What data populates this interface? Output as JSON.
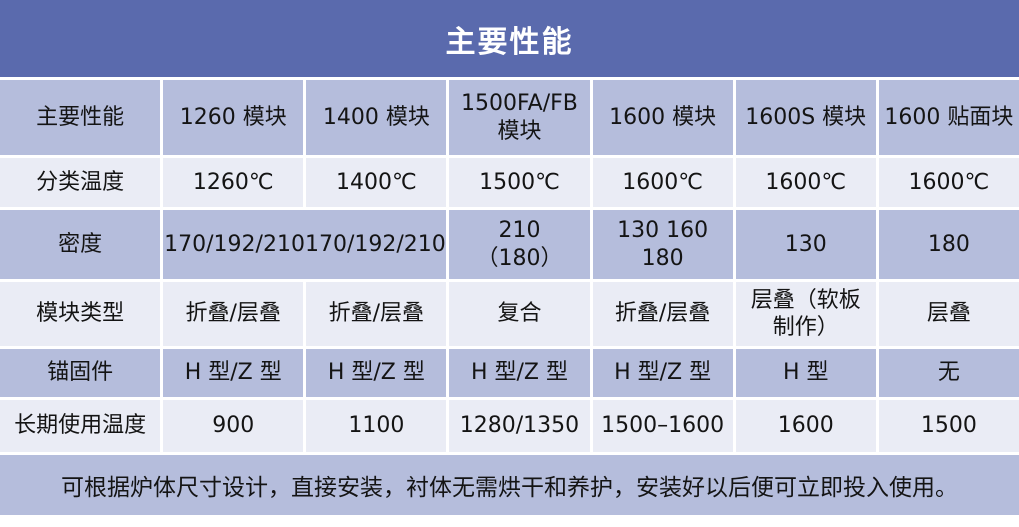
{
  "title": "主要性能",
  "colors": {
    "title_bar_bg": "#5a6aad",
    "title_text": "#ffffff",
    "band_row_bg": "#b5bddc",
    "light_row_bg": "#eaecf5",
    "grid_line": "#ffffff",
    "body_text": "#141414"
  },
  "table": {
    "columns": [
      "主要性能",
      "1260 模块",
      "1400 模块",
      "1500FA/FB\n模块",
      "1600 模块",
      "1600S 模块",
      "1600 贴面块"
    ],
    "rows": [
      {
        "label": "分类温度",
        "cells": [
          "1260℃",
          "1400℃",
          "1500℃",
          "1600℃",
          "1600℃",
          "1600℃"
        ]
      },
      {
        "label": "密度",
        "cells": [
          "170/192/210170/192/210",
          "210\n（180）",
          "130 160\n180",
          "130",
          "180"
        ]
      },
      {
        "label": "模块类型",
        "cells": [
          "折叠/层叠",
          "折叠/层叠",
          "复合",
          "折叠/层叠",
          "层叠（软板\n制作）",
          "层叠"
        ]
      },
      {
        "label": "锚固件",
        "cells": [
          "H 型/Z 型",
          "H 型/Z 型",
          "H 型/Z 型",
          "H 型/Z 型",
          "H 型",
          "无"
        ]
      },
      {
        "label": "长期使用温度",
        "cells": [
          "900",
          "1100",
          "1280/1350",
          "1500–1600",
          "1600",
          "1500"
        ]
      }
    ]
  },
  "footer": "可根据炉体尺寸设计，直接安装，衬体无需烘干和养护，安装好以后便可立即投入使用。"
}
